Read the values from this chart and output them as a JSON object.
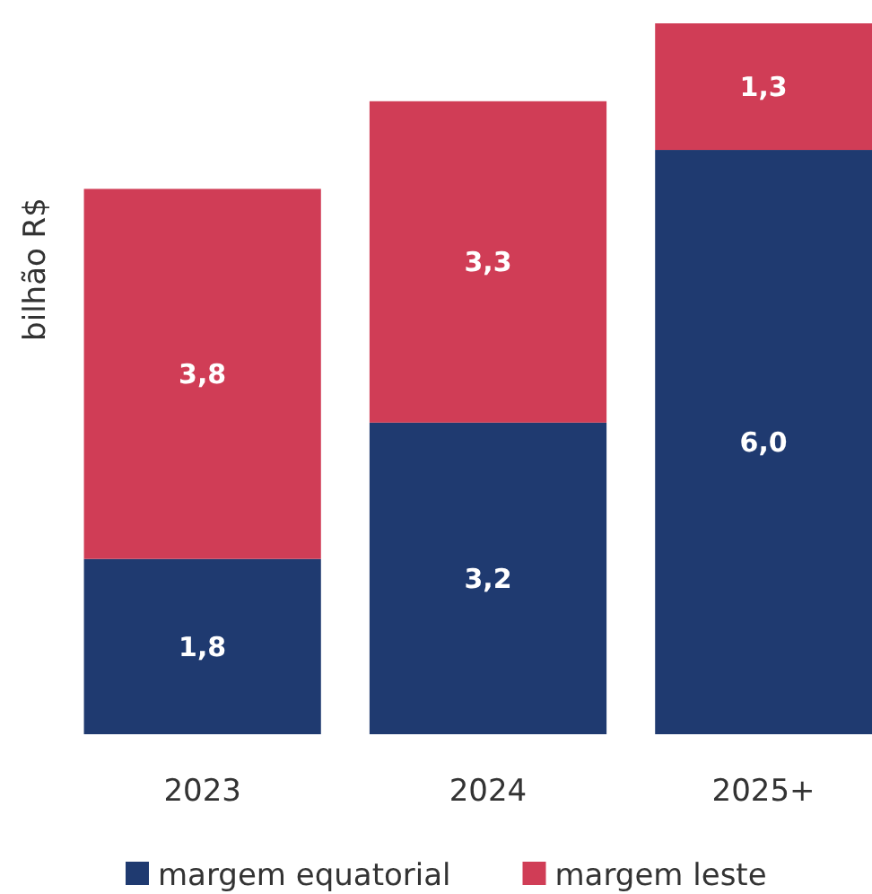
{
  "chart_data": {
    "type": "bar",
    "stacked": true,
    "ylabel": "bilhão R$",
    "categories": [
      "2023",
      "2024",
      "2025+"
    ],
    "legend": "bottom",
    "series": [
      {
        "name": "margem equatorial",
        "color": "#1f3a70",
        "values": [
          1.8,
          3.2,
          6.0
        ],
        "value_labels": [
          "1,8",
          "3,2",
          "6,0"
        ]
      },
      {
        "name": "margem leste",
        "color": "#d03d56",
        "values": [
          3.8,
          3.3,
          1.3
        ],
        "value_labels": [
          "3,8",
          "3,3",
          "1,3"
        ]
      }
    ]
  }
}
